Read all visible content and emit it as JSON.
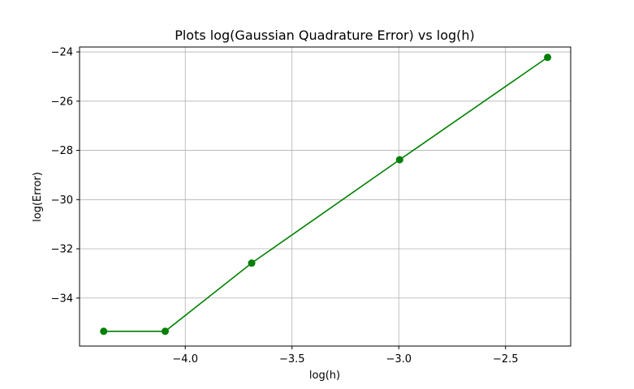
{
  "chart_data": {
    "type": "line",
    "title": "Plots log(Gaussian Quadrature Error) vs log(h)",
    "xlabel": "log(h)",
    "ylabel": "log(Error)",
    "xlim": [
      -4.495,
      -2.195
    ],
    "ylim": [
      -35.95,
      -23.8
    ],
    "xticks": [
      -4.0,
      -3.5,
      -3.0,
      -2.5
    ],
    "xtick_labels": [
      "−4.0",
      "−3.5",
      "−3.0",
      "−2.5"
    ],
    "yticks": [
      -34,
      -32,
      -30,
      -28,
      -26,
      -24
    ],
    "ytick_labels": [
      "−34",
      "−32",
      "−30",
      "−28",
      "−26",
      "−24"
    ],
    "grid": true,
    "series": [
      {
        "color": "#008000",
        "marker": "circle",
        "x": [
          -4.382,
          -4.094,
          -3.689,
          -2.996,
          -2.303
        ],
        "y": [
          -35.35,
          -35.35,
          -32.58,
          -28.38,
          -24.22
        ]
      }
    ]
  }
}
